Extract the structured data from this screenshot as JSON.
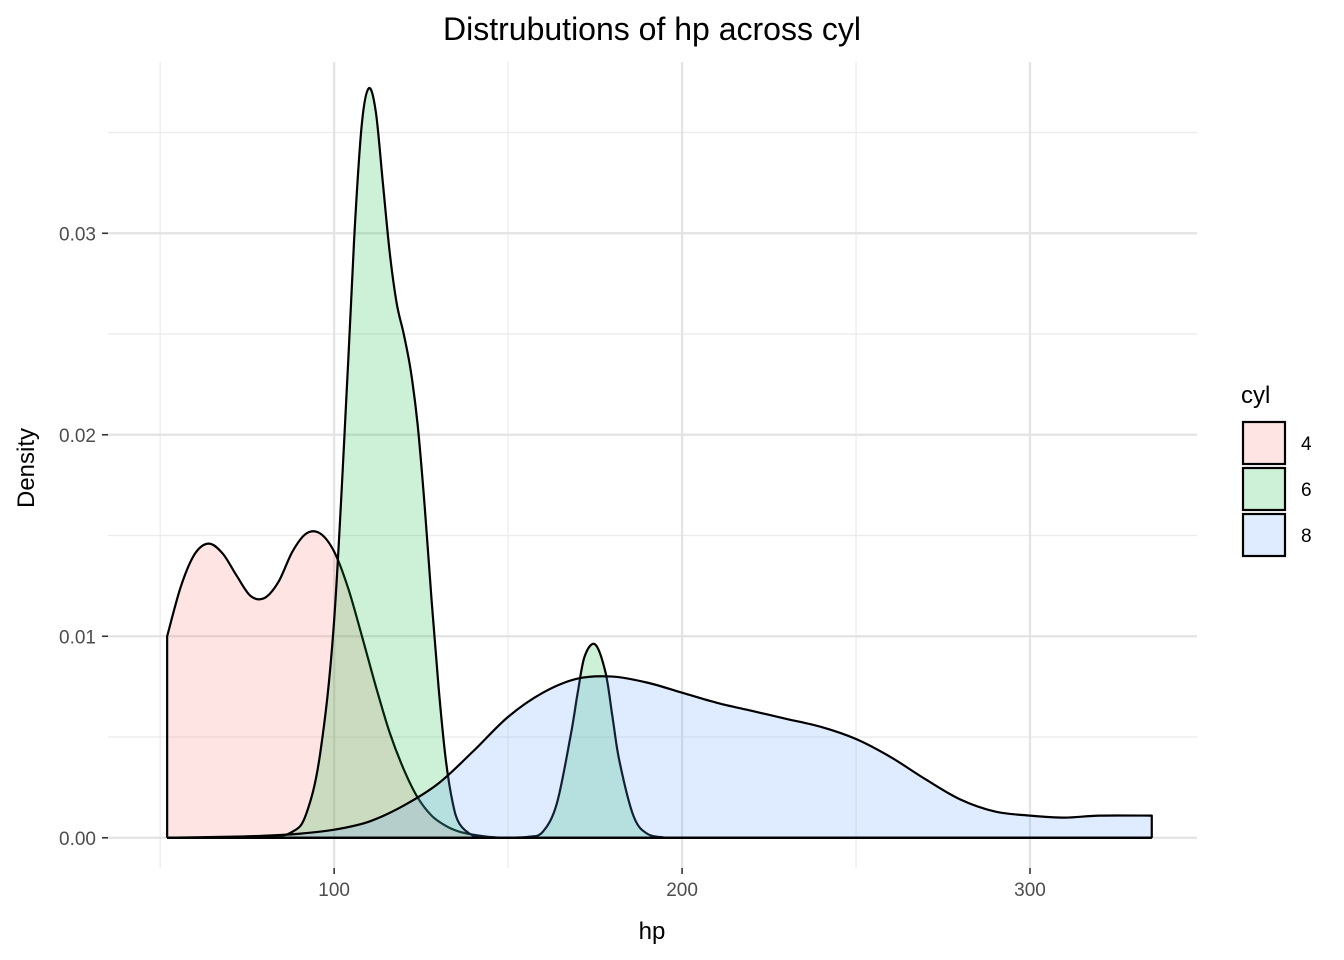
{
  "chart_data": {
    "type": "area",
    "title": "Distrubutions of hp across cyl",
    "xlabel": "hp",
    "ylabel": "Density",
    "xlim": [
      35,
      348
    ],
    "ylim": [
      -0.0015,
      0.0385
    ],
    "x_ticks": [
      100,
      200,
      300
    ],
    "x_tick_labels": [
      "100",
      "200",
      "300"
    ],
    "y_ticks": [
      0.0,
      0.01,
      0.02,
      0.03
    ],
    "y_tick_labels": [
      "0.00",
      "0.01",
      "0.02",
      "0.03"
    ],
    "grid": true,
    "legend": {
      "title": "cyl",
      "position": "right"
    },
    "series": [
      {
        "name": "4",
        "fill": "#F8766D",
        "x": [
          52,
          56,
          60,
          64,
          68,
          72,
          76,
          80,
          84,
          88,
          92,
          96,
          100,
          104,
          108,
          112,
          116,
          120,
          124,
          128,
          132,
          136,
          140,
          144,
          148
        ],
        "y": [
          0.01,
          0.0125,
          0.0141,
          0.0146,
          0.0141,
          0.013,
          0.012,
          0.0119,
          0.0127,
          0.0142,
          0.0151,
          0.0151,
          0.0142,
          0.0124,
          0.01,
          0.0075,
          0.0052,
          0.0034,
          0.002,
          0.0011,
          0.0006,
          0.0003,
          0.00015,
          5e-05,
          0.0
        ]
      },
      {
        "name": "6",
        "fill": "#00BA38",
        "x": [
          52,
          80,
          88,
          92,
          96,
          100,
          104,
          106,
          108,
          110,
          112,
          114,
          116,
          118,
          120,
          122,
          124,
          126,
          128,
          130,
          132,
          134,
          136,
          140,
          144,
          150,
          156,
          160,
          164,
          168,
          170,
          172,
          175,
          178,
          180,
          182,
          186,
          190,
          196,
          200,
          335
        ],
        "y": [
          0.0,
          5e-05,
          0.0003,
          0.0012,
          0.0042,
          0.0108,
          0.0235,
          0.0305,
          0.0355,
          0.0372,
          0.036,
          0.0325,
          0.029,
          0.0265,
          0.025,
          0.0232,
          0.0205,
          0.0165,
          0.0118,
          0.0075,
          0.004,
          0.0018,
          0.0007,
          0.0001,
          0.0,
          0.0,
          5e-05,
          0.0003,
          0.0017,
          0.0051,
          0.0072,
          0.009,
          0.0096,
          0.0082,
          0.006,
          0.0038,
          0.0011,
          0.0002,
          0.0,
          0.0,
          0.0
        ]
      },
      {
        "name": "8",
        "fill": "#619CFF",
        "x": [
          52,
          70,
          80,
          90,
          100,
          110,
          120,
          130,
          140,
          150,
          160,
          170,
          180,
          190,
          200,
          210,
          220,
          230,
          240,
          250,
          260,
          270,
          280,
          290,
          300,
          310,
          320,
          335
        ],
        "y": [
          0.0,
          5e-05,
          0.0001,
          0.0002,
          0.0004,
          0.0008,
          0.0016,
          0.0027,
          0.0043,
          0.006,
          0.0072,
          0.0079,
          0.008,
          0.0077,
          0.0072,
          0.0067,
          0.0063,
          0.0059,
          0.0055,
          0.0049,
          0.004,
          0.0029,
          0.0019,
          0.0013,
          0.0011,
          0.001,
          0.0011,
          0.0011
        ]
      }
    ]
  }
}
